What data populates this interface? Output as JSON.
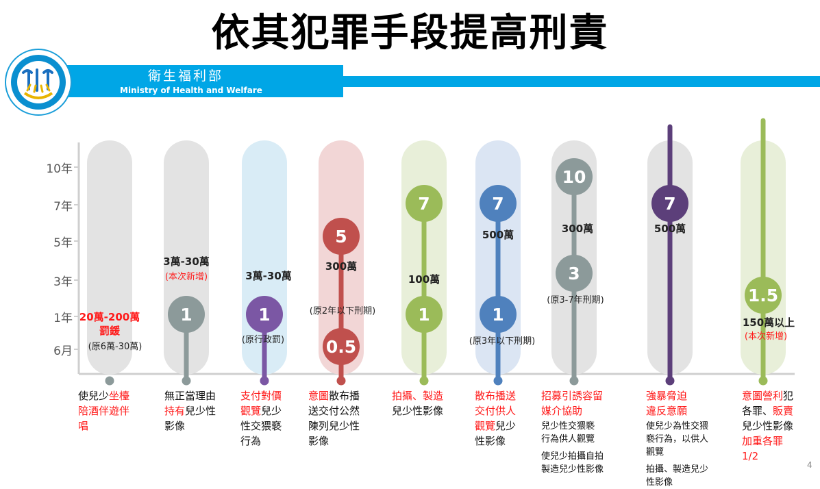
{
  "title": "依其犯罪手段提高刑責",
  "ministry": {
    "name_zh": "衛生福利部",
    "name_en": "Ministry of Health and Welfare"
  },
  "page_number": "4",
  "colors": {
    "band": "#00a6e6",
    "gray": "#8c9a9a",
    "purple": "#7b57a4",
    "red": "#c0504d",
    "green": "#9bbb59",
    "blue": "#4f81bd",
    "darkpurple": "#5c3f7a"
  },
  "chart_data": {
    "type": "range",
    "y_ticks": [
      "10年",
      "7年",
      "5年",
      "3年",
      "1年",
      "6月"
    ],
    "columns": [
      {
        "key": "c1",
        "color": "gray",
        "range": [],
        "fine": "20萬-200萬",
        "fine2": "罰鍰",
        "note": "(原6萬-30萬)",
        "desc": [
          [
            {
              "t": "使兒少"
            },
            {
              "t": "坐檯",
              "hl": true
            }
          ],
          [
            {
              "t": "陪酒伴遊伴",
              "hl": true
            }
          ],
          [
            {
              "t": "唱",
              "hl": true
            }
          ]
        ]
      },
      {
        "key": "c2",
        "color": "gray",
        "range": [
          "1"
        ],
        "fine": "3萬-30萬",
        "note": "(本次新增)",
        "desc": [
          [
            {
              "t": "無正當理由"
            }
          ],
          [
            {
              "t": "持有",
              "hl": true
            },
            {
              "t": "兒少性"
            }
          ],
          [
            {
              "t": "影像"
            }
          ]
        ]
      },
      {
        "key": "c3",
        "color": "purple",
        "range": [
          "1"
        ],
        "fine": "3萬-30萬",
        "note": "(原行政罰)",
        "desc": [
          [
            {
              "t": "支付對價",
              "hl": true
            }
          ],
          [
            {
              "t": "觀覽",
              "hl": true
            },
            {
              "t": "兒少"
            }
          ],
          [
            {
              "t": "性交猥褻"
            }
          ],
          [
            {
              "t": "行為"
            }
          ]
        ]
      },
      {
        "key": "c4",
        "color": "red",
        "range": [
          "5",
          "0.5"
        ],
        "fine": "300萬",
        "note": "(原2年以下刑期)",
        "desc": [
          [
            {
              "t": "意圖",
              "hl": true
            },
            {
              "t": "散布播"
            }
          ],
          [
            {
              "t": "送交付公然"
            }
          ],
          [
            {
              "t": "陳列兒少性"
            }
          ],
          [
            {
              "t": "影像"
            }
          ]
        ]
      },
      {
        "key": "c5",
        "color": "green",
        "range": [
          "7",
          "1"
        ],
        "fine": "100萬",
        "desc": [
          [
            {
              "t": "拍攝、製造",
              "hl": true
            }
          ],
          [
            {
              "t": "兒少性影像"
            }
          ]
        ]
      },
      {
        "key": "c6",
        "color": "blue",
        "range": [
          "7",
          "1"
        ],
        "fine": "500萬",
        "note": "(原3年以下刑期)",
        "desc": [
          [
            {
              "t": "散布播送",
              "hl": true
            }
          ],
          [
            {
              "t": "交付供人",
              "hl": true
            }
          ],
          [
            {
              "t": "觀覽",
              "hl": true
            },
            {
              "t": "兒少"
            }
          ],
          [
            {
              "t": "性影像"
            }
          ]
        ]
      },
      {
        "key": "c7",
        "color": "gray",
        "range": [
          "10",
          "3"
        ],
        "fine": "300萬",
        "note": "(原3-7年刑期)",
        "desc": [
          [
            {
              "t": "招募引誘容留",
              "hl": true
            }
          ],
          [
            {
              "t": "媒介協助",
              "hl": true
            }
          ]
        ],
        "sub": [
          "兒少性交猥褻",
          "行為供人觀覽",
          "使兒少拍攝自拍",
          "製造兒少性影像"
        ]
      },
      {
        "key": "c8",
        "color": "darkpurple",
        "range": [
          "7"
        ],
        "fine": "500萬",
        "desc": [
          [
            {
              "t": "強暴脅迫",
              "hl": true
            }
          ],
          [
            {
              "t": "違反意願",
              "hl": true
            }
          ]
        ],
        "sub": [
          "使兒少為性交猥",
          "褻行為，以供人",
          "觀覽",
          "拍攝、製造兒少",
          "性影像"
        ]
      },
      {
        "key": "c9",
        "color": "green",
        "range": [
          "1.5"
        ],
        "fine": "150萬以上",
        "note": "(本次新增)",
        "desc": [
          [
            {
              "t": "意圖營利",
              "hl": true
            },
            {
              "t": "犯"
            }
          ],
          [
            {
              "t": "各罪、"
            },
            {
              "t": "販賣",
              "hl": true
            }
          ],
          [
            {
              "t": "兒少性影像"
            }
          ],
          [
            {
              "t": "加重各罪",
              "hl": true
            }
          ],
          [
            {
              "t": "1/2",
              "hl": true
            }
          ]
        ]
      }
    ]
  }
}
